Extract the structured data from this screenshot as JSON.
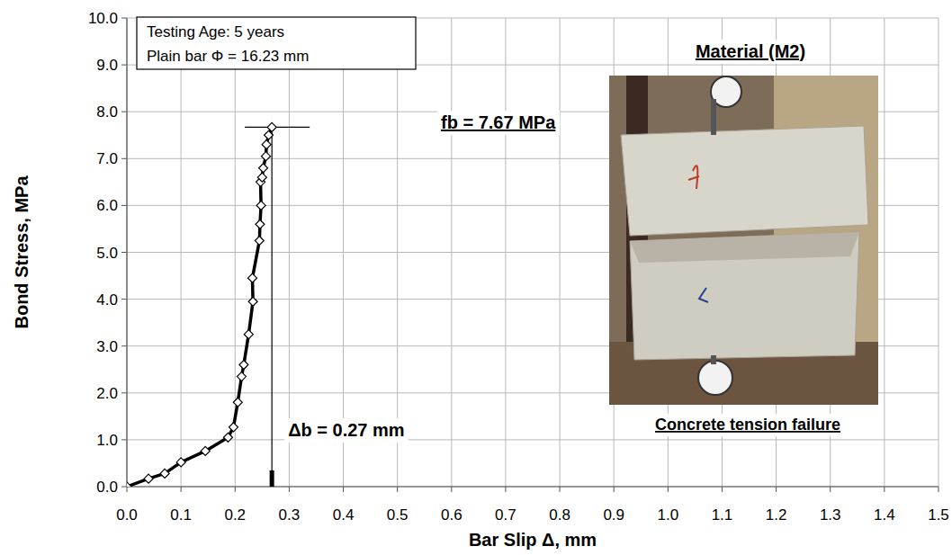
{
  "chart_data": {
    "type": "line",
    "x_label": "Bar Slip Δ, mm",
    "y_label": "Bond Stress, MPa",
    "annotations": [
      "Testing Age: 5 years",
      "Plain bar Φ = 16.23 mm",
      "fb = 7.67 MPa",
      "Δb = 0.27 mm",
      "Material (M2)",
      "Concrete tension failure"
    ],
    "x": [
      0,
      0.04,
      0.07,
      0.1,
      0.145,
      0.187,
      0.197,
      0.205,
      0.212,
      0.216,
      0.225,
      0.233,
      0.232,
      0.245,
      0.246,
      0.248,
      0.247,
      0.25,
      0.252,
      0.257,
      0.258,
      0.262,
      0.268
    ],
    "values": [
      0,
      0.17,
      0.28,
      0.52,
      0.76,
      1.05,
      1.27,
      1.8,
      2.35,
      2.6,
      3.25,
      3.95,
      4.45,
      5.25,
      5.6,
      6.0,
      6.5,
      6.6,
      6.8,
      7.05,
      7.3,
      7.5,
      7.67
    ],
    "color": "#000000",
    "marker": "diamond",
    "xlim": [
      0,
      1.5
    ],
    "ylim": [
      0,
      10
    ],
    "xticks": [
      {
        "value": 0,
        "label": "0.0"
      },
      {
        "value": 0.1,
        "label": "0.1"
      },
      {
        "value": 0.2,
        "label": "0.2"
      },
      {
        "value": 0.3,
        "label": "0.3"
      },
      {
        "value": 0.4,
        "label": "0.4"
      },
      {
        "value": 0.5,
        "label": "0.5"
      },
      {
        "value": 0.6,
        "label": "0.6"
      },
      {
        "value": 0.7,
        "label": "0.7"
      },
      {
        "value": 0.8,
        "label": "0.8"
      },
      {
        "value": 0.9,
        "label": "0.9"
      },
      {
        "value": 1.0,
        "label": "1.0"
      },
      {
        "value": 1.1,
        "label": "1.1"
      },
      {
        "value": 1.2,
        "label": "1.2"
      },
      {
        "value": 1.3,
        "label": "1.3"
      },
      {
        "value": 1.4,
        "label": "1.4"
      },
      {
        "value": 1.5,
        "label": "1.5"
      }
    ],
    "yticks": [
      {
        "value": 0,
        "label": "0.0"
      },
      {
        "value": 1,
        "label": "1.0"
      },
      {
        "value": 2,
        "label": "2.0"
      },
      {
        "value": 3,
        "label": "3.0"
      },
      {
        "value": 4,
        "label": "4.0"
      },
      {
        "value": 5,
        "label": "5.0"
      },
      {
        "value": 6,
        "label": "6.0"
      },
      {
        "value": 7,
        "label": "7.0"
      },
      {
        "value": 8,
        "label": "8.0"
      },
      {
        "value": 9,
        "label": "9.0"
      },
      {
        "value": 10,
        "label": "10.0"
      }
    ],
    "grid": true
  }
}
